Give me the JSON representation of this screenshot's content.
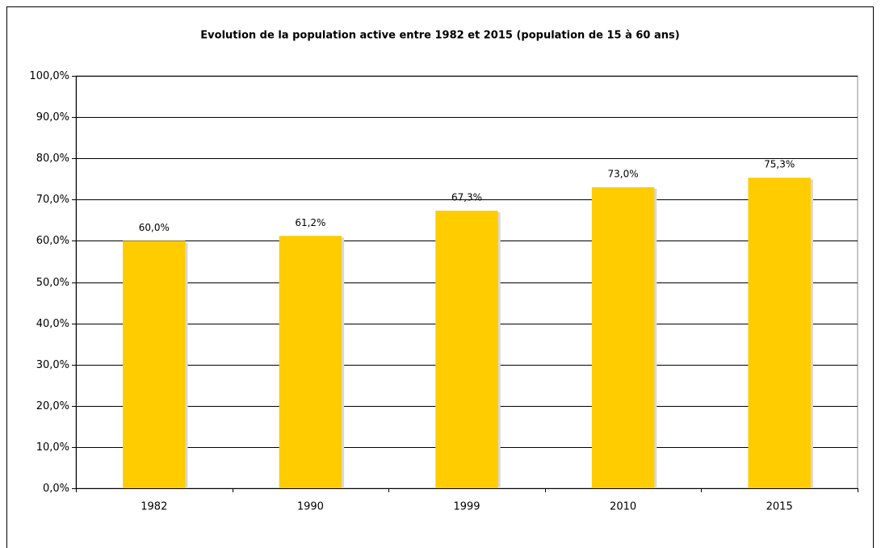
{
  "chart_data": {
    "type": "bar",
    "title": "Evolution de la population active entre 1982 et 2015 (population de 15 à 60 ans)",
    "categories": [
      "1982",
      "1990",
      "1999",
      "2010",
      "2015"
    ],
    "values": [
      60.0,
      61.2,
      67.3,
      73.0,
      75.3
    ],
    "value_labels": [
      "60,0%",
      "61,2%",
      "67,3%",
      "73,0%",
      "75,3%"
    ],
    "color": "#ffcc00",
    "ylim": [
      0,
      100
    ],
    "yticks": [
      {
        "value": 0,
        "label": "0,0%"
      },
      {
        "value": 10,
        "label": "10,0%"
      },
      {
        "value": 20,
        "label": "20,0%"
      },
      {
        "value": 30,
        "label": "30,0%"
      },
      {
        "value": 40,
        "label": "40,0%"
      },
      {
        "value": 50,
        "label": "50,0%"
      },
      {
        "value": 60,
        "label": "60,0%"
      },
      {
        "value": 70,
        "label": "70,0%"
      },
      {
        "value": 80,
        "label": "80,0%"
      },
      {
        "value": 90,
        "label": "90,0%"
      },
      {
        "value": 100,
        "label": "100,0%"
      }
    ],
    "grid": true
  }
}
